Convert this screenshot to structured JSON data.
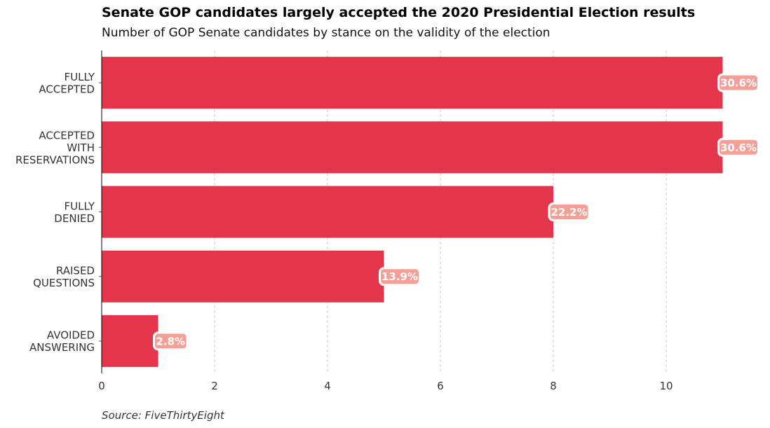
{
  "header": {
    "title": "Senate GOP candidates largely accepted the 2020 Presidential Election results",
    "subtitle": "Number of GOP Senate candidates by stance on the validity of the election"
  },
  "footer": {
    "source": "Source: FiveThirtyEight"
  },
  "colors": {
    "bar": "#e3364b",
    "label_box": "#f4a097",
    "label_text": "#ffffff",
    "grid": "#cccccc",
    "axis_text": "#333333"
  },
  "chart_data": {
    "type": "bar",
    "orientation": "horizontal",
    "categories": [
      [
        "FULLY",
        "ACCEPTED"
      ],
      [
        "ACCEPTED",
        "WITH",
        "RESERVATIONS"
      ],
      [
        "FULLY",
        "DENIED"
      ],
      [
        "RAISED",
        "QUESTIONS"
      ],
      [
        "AVOIDED",
        "ANSWERING"
      ]
    ],
    "values": [
      11,
      11,
      8,
      5,
      1
    ],
    "data_labels": [
      "30.6%",
      "30.6%",
      "22.2%",
      "13.9%",
      "2.8%"
    ],
    "xlim": [
      0,
      11
    ],
    "xticks": [
      0,
      2,
      4,
      6,
      8,
      10
    ],
    "xlabel": "",
    "ylabel": "",
    "grid": "x-dashed"
  }
}
